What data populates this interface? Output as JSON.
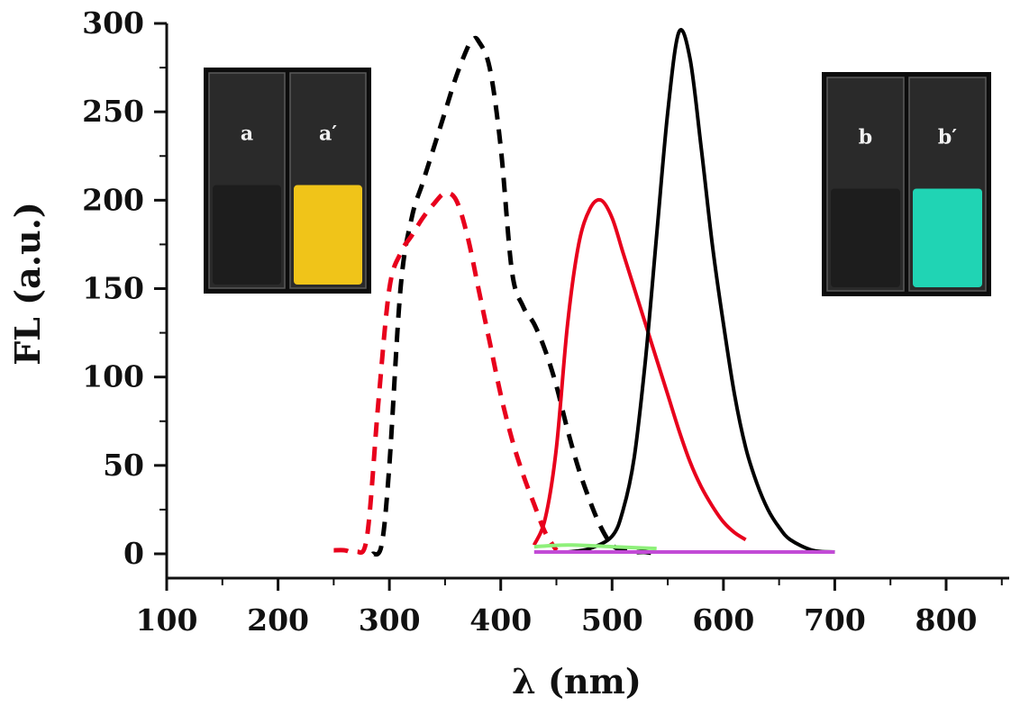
{
  "chart_data": {
    "type": "line",
    "xlabel": "λ (nm)",
    "ylabel": "FL (a.u.)",
    "xlim": [
      100,
      850
    ],
    "ylim": [
      -10,
      300
    ],
    "xticks": [
      100,
      200,
      300,
      400,
      500,
      600,
      700,
      800
    ],
    "yticks": [
      0,
      50,
      100,
      150,
      200,
      250,
      300
    ],
    "grid": false,
    "legend": "none",
    "series": [
      {
        "style": "dashed",
        "color": "#000000",
        "x": [
          285,
          293,
          300,
          310,
          320,
          330,
          340,
          350,
          360,
          370,
          375,
          380,
          390,
          400,
          410,
          420,
          430,
          440,
          450,
          460,
          470,
          480,
          490,
          500,
          510,
          520,
          530,
          540
        ],
        "y": [
          0,
          5,
          50,
          150,
          190,
          210,
          230,
          250,
          270,
          286,
          291,
          290,
          275,
          230,
          160,
          140,
          130,
          115,
          95,
          70,
          48,
          30,
          15,
          5,
          2,
          1,
          1,
          0
        ]
      },
      {
        "style": "dashed",
        "color": "#e8001c",
        "x": [
          250,
          260,
          270,
          280,
          290,
          300,
          310,
          320,
          330,
          340,
          350,
          360,
          370,
          380,
          390,
          400,
          410,
          420,
          430,
          440,
          450
        ],
        "y": [
          2,
          2,
          1,
          10,
          85,
          150,
          170,
          180,
          190,
          198,
          204,
          200,
          180,
          150,
          120,
          90,
          65,
          45,
          28,
          12,
          2
        ]
      },
      {
        "style": "solid",
        "color": "#e8001c",
        "x": [
          430,
          440,
          450,
          460,
          470,
          480,
          490,
          500,
          510,
          520,
          530,
          540,
          550,
          560,
          570,
          580,
          590,
          600,
          610,
          620
        ],
        "y": [
          5,
          20,
          60,
          130,
          175,
          195,
          200,
          190,
          170,
          150,
          130,
          110,
          90,
          70,
          52,
          38,
          27,
          18,
          12,
          8
        ]
      },
      {
        "style": "solid",
        "color": "#000000",
        "x": [
          460,
          480,
          500,
          510,
          520,
          530,
          540,
          550,
          560,
          570,
          580,
          590,
          600,
          610,
          620,
          630,
          640,
          650,
          660,
          680,
          700
        ],
        "y": [
          1,
          3,
          10,
          25,
          55,
          110,
          180,
          250,
          295,
          280,
          230,
          175,
          130,
          90,
          60,
          40,
          25,
          15,
          8,
          2,
          1
        ]
      },
      {
        "style": "solid",
        "color": "#c24bd6",
        "x": [
          430,
          500,
          600,
          700
        ],
        "y": [
          1,
          1,
          1,
          1
        ]
      },
      {
        "style": "solid",
        "color": "#8ef07a",
        "x": [
          430,
          460,
          500,
          540
        ],
        "y": [
          4,
          5,
          4,
          3
        ]
      }
    ],
    "insets": [
      {
        "position": "top-left",
        "labels": [
          "a",
          "a′"
        ],
        "colors": [
          "#1c1c1c",
          "#f0c419"
        ]
      },
      {
        "position": "top-right",
        "labels": [
          "b",
          "b′"
        ],
        "colors": [
          "#1c1c1c",
          "#20d4b4"
        ]
      }
    ]
  }
}
